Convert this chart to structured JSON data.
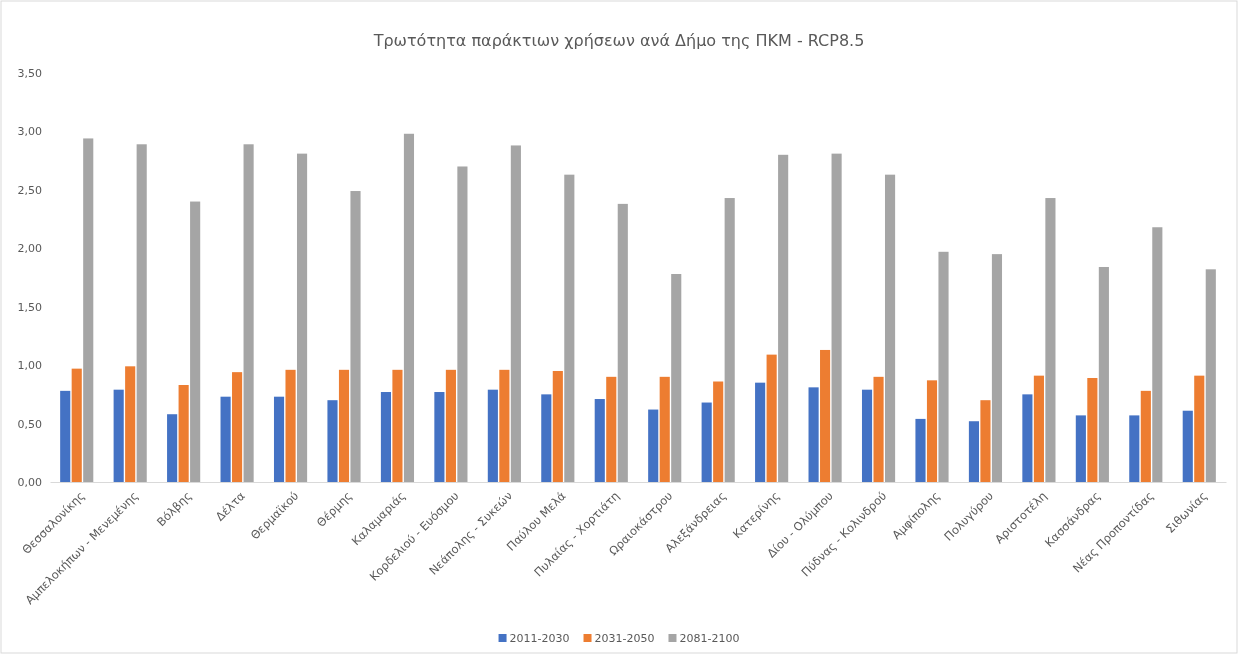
{
  "chart_data": {
    "type": "bar",
    "title": "Τρωτότητα παράκτιων χρήσεων ανά Δήμο της ΠΚΜ - RCP8.5",
    "categories": [
      "Θεσσαλονίκης",
      "Αμπελοκήπων - Μενεμένης",
      "Βόλβης",
      "Δέλτα",
      "Θερμαϊκού",
      "Θέρμης",
      "Καλαμαριάς",
      "Κορδελιού - Ευόσμου",
      "Νεάπολης - Συκεών",
      "Παύλου Μελά",
      "Πυλαίας - Χορτιάτη",
      "Ωραιοκάστρου",
      "Αλεξάνδρειας",
      "Κατερίνης",
      "Δίου - Ολύμπου",
      "Πύδνας - Κολινδρού",
      "Αμφίπολης",
      "Πολυγύρου",
      "Αριστοτέλη",
      "Κασσάνδρας",
      "Νέας Προποντίδας",
      "Σιθωνίας"
    ],
    "series": [
      {
        "name": "2011-2030",
        "color": "#4472c4",
        "values": [
          0.78,
          0.79,
          0.58,
          0.73,
          0.73,
          0.7,
          0.77,
          0.77,
          0.79,
          0.75,
          0.71,
          0.62,
          0.68,
          0.85,
          0.81,
          0.79,
          0.54,
          0.52,
          0.75,
          0.57,
          0.57,
          0.61
        ]
      },
      {
        "name": "2031-2050",
        "color": "#ed7d31",
        "values": [
          0.97,
          0.99,
          0.83,
          0.94,
          0.96,
          0.96,
          0.96,
          0.96,
          0.96,
          0.95,
          0.9,
          0.9,
          0.86,
          1.09,
          1.13,
          0.9,
          0.87,
          0.7,
          0.91,
          0.89,
          0.78,
          0.91
        ]
      },
      {
        "name": "2081-2100",
        "color": "#a5a5a5",
        "values": [
          2.94,
          2.89,
          2.4,
          2.89,
          2.81,
          2.49,
          2.98,
          2.7,
          2.88,
          2.63,
          2.38,
          1.78,
          2.43,
          2.8,
          2.81,
          2.63,
          1.97,
          1.95,
          2.43,
          1.84,
          2.18,
          1.82
        ]
      }
    ],
    "ylim": [
      0,
      3.5
    ],
    "yticks": [
      {
        "value": 0,
        "label": "0,00"
      },
      {
        "value": 0.5,
        "label": "0,50"
      },
      {
        "value": 1,
        "label": "1,00"
      },
      {
        "value": 1.5,
        "label": "1,50"
      },
      {
        "value": 2,
        "label": "2,00"
      },
      {
        "value": 2.5,
        "label": "2,50"
      },
      {
        "value": 3,
        "label": "3,00"
      },
      {
        "value": 3.5,
        "label": "3,50"
      }
    ],
    "grid": false,
    "legend": "bottom"
  }
}
